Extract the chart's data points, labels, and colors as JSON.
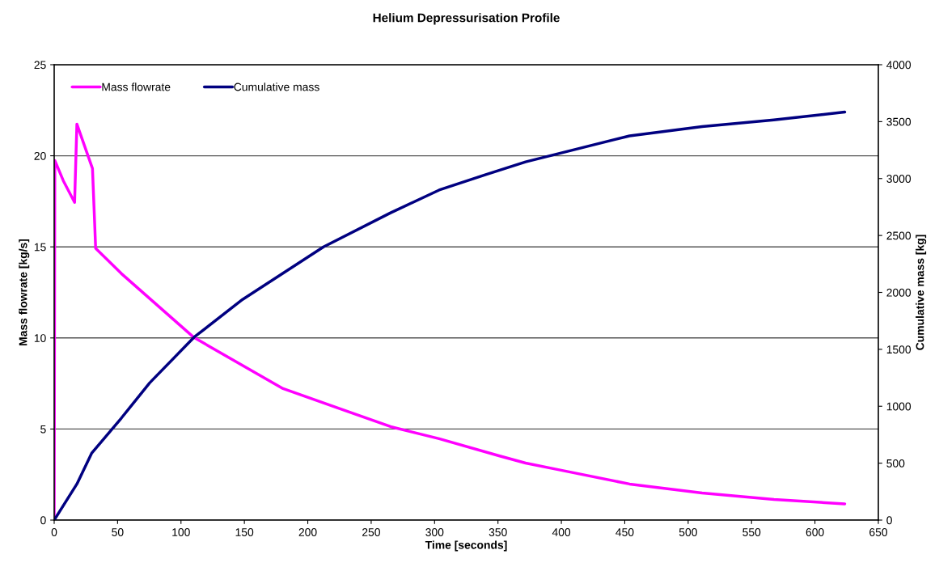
{
  "chart_data": {
    "type": "line",
    "title": "Helium Depressurisation Profile",
    "xlabel": "Time [seconds]",
    "ylabel": "Mass flowrate [kg/s]",
    "y2label": "Cumulative mass [kg]",
    "xlim": [
      0,
      650
    ],
    "xticks": [
      0,
      50,
      100,
      150,
      200,
      250,
      300,
      350,
      400,
      450,
      500,
      550,
      600,
      650
    ],
    "ylim": [
      0,
      25
    ],
    "yticks": [
      0,
      5,
      10,
      15,
      20,
      25
    ],
    "y2lim": [
      0,
      4000
    ],
    "y2ticks": [
      0,
      500,
      1000,
      1500,
      2000,
      2500,
      3000,
      3500,
      4000
    ],
    "grid": "y",
    "legend": "top left",
    "marker": "none",
    "line_style": "solid",
    "series": [
      {
        "name": "Mass flowrate",
        "color": "#ff00ff",
        "x": [
          0,
          0.5,
          7.2,
          16.1,
          17.9,
          30.2,
          32.7,
          52.9,
          110.3,
          180.5,
          265.3,
          303.6,
          350.8,
          371.8,
          396.7,
          453.8,
          511,
          567.7,
          623.5
        ],
        "values": [
          0,
          19.74,
          18.63,
          17.44,
          21.74,
          19.3,
          14.92,
          13.54,
          10.02,
          7.22,
          5.13,
          4.47,
          3.53,
          3.13,
          2.78,
          1.98,
          1.49,
          1.13,
          0.89
        ]
      },
      {
        "name": "Cumulative mass",
        "color": "#000080",
        "axis": "y2",
        "x": [
          0,
          17.9,
          29.5,
          52.9,
          75.3,
          110.3,
          148.6,
          212.4,
          265.3,
          303.6,
          339.9,
          371.8,
          453.8,
          511,
          567.6,
          623.5
        ],
        "values": [
          0,
          317,
          587,
          895,
          1205,
          1606,
          1938,
          2400,
          2699,
          2899,
          3033,
          3147,
          3375,
          3457,
          3515,
          3584
        ]
      }
    ]
  }
}
